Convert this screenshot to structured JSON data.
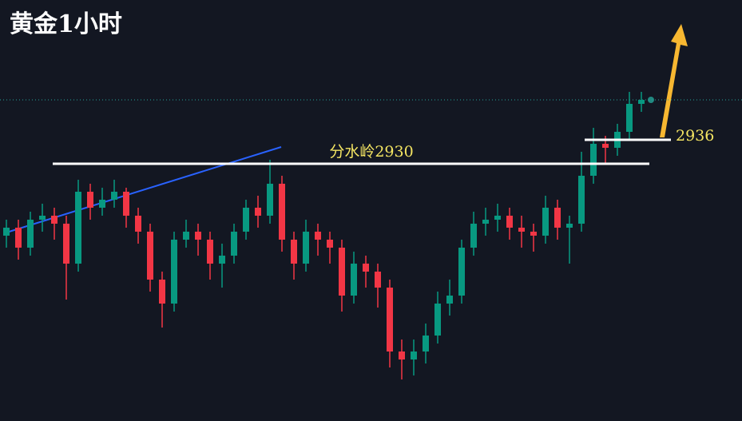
{
  "chart_data": {
    "type": "candlestick",
    "title": "黄金1小时",
    "open": [
      2912,
      2914,
      2909,
      2916,
      2917,
      2915,
      2905,
      2923,
      2919,
      2921,
      2923,
      2917,
      2913,
      2901,
      2895,
      2911,
      2913,
      2911,
      2905,
      2907,
      2913,
      2919,
      2917,
      2925,
      2911,
      2905,
      2913,
      2911,
      2909,
      2897,
      2905,
      2903,
      2899,
      2883,
      2881,
      2883,
      2887,
      2895,
      2897,
      2909,
      2915,
      2916,
      2917,
      2914,
      2913,
      2912,
      2919,
      2914,
      2915,
      2927,
      2935,
      2934,
      2938,
      2945
    ],
    "high": [
      2916,
      2916,
      2918,
      2920,
      2919,
      2917,
      2926,
      2925,
      2924,
      2926,
      2924,
      2919,
      2915,
      2903,
      2913,
      2916,
      2915,
      2913,
      2910,
      2915,
      2921,
      2922,
      2931,
      2927,
      2913,
      2916,
      2915,
      2913,
      2911,
      2908,
      2907,
      2905,
      2901,
      2886,
      2886,
      2890,
      2898,
      2901,
      2911,
      2918,
      2919,
      2920,
      2919,
      2917,
      2915,
      2922,
      2921,
      2917,
      2933,
      2939,
      2937,
      2940,
      2948,
      2948
    ],
    "low": [
      2909,
      2906,
      2907,
      2913,
      2911,
      2896,
      2903,
      2916,
      2917,
      2919,
      2914,
      2910,
      2898,
      2889,
      2893,
      2909,
      2907,
      2901,
      2899,
      2905,
      2911,
      2914,
      2915,
      2908,
      2901,
      2903,
      2907,
      2905,
      2893,
      2895,
      2899,
      2894,
      2879,
      2876,
      2877,
      2880,
      2885,
      2892,
      2895,
      2907,
      2912,
      2913,
      2911,
      2909,
      2908,
      2910,
      2911,
      2905,
      2913,
      2925,
      2930,
      2932,
      2936,
      2943
    ],
    "close": [
      2914,
      2909,
      2916,
      2917,
      2915,
      2905,
      2923,
      2919,
      2921,
      2923,
      2917,
      2913,
      2901,
      2895,
      2911,
      2913,
      2911,
      2905,
      2907,
      2913,
      2919,
      2917,
      2925,
      2911,
      2905,
      2913,
      2911,
      2909,
      2897,
      2905,
      2903,
      2899,
      2883,
      2881,
      2883,
      2887,
      2895,
      2897,
      2909,
      2915,
      2916,
      2917,
      2914,
      2913,
      2912,
      2919,
      2914,
      2915,
      2927,
      2935,
      2934,
      2938,
      2945,
      2946
    ],
    "up_color": "#089981",
    "down_color": "#f23645",
    "ylim": [
      2875,
      2950
    ],
    "annotations": [
      {
        "text": "分水岭2930",
        "value": 2930
      },
      {
        "text": "2936",
        "value": 2936
      }
    ]
  }
}
